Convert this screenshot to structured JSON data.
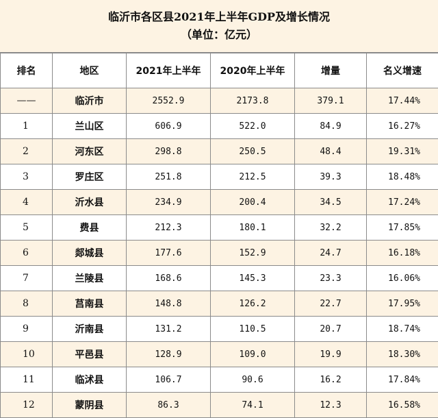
{
  "title": {
    "line1": "临沂市各区县2021年上半年GDP及增长情况",
    "line2": "（单位：亿元）"
  },
  "headers": [
    "排名",
    "地区",
    "2021年上半年",
    "2020年上半年",
    "增量",
    "名义增速"
  ],
  "rows": [
    {
      "rank": "——",
      "region": "临沂市",
      "gdp2021": "2552.9",
      "gdp2020": "2173.8",
      "increase": "379.1",
      "growth": "17.44%"
    },
    {
      "rank": "1",
      "region": "兰山区",
      "gdp2021": "606.9",
      "gdp2020": "522.0",
      "increase": "84.9",
      "growth": "16.27%"
    },
    {
      "rank": "2",
      "region": "河东区",
      "gdp2021": "298.8",
      "gdp2020": "250.5",
      "increase": "48.4",
      "growth": "19.31%"
    },
    {
      "rank": "3",
      "region": "罗庄区",
      "gdp2021": "251.8",
      "gdp2020": "212.5",
      "increase": "39.3",
      "growth": "18.48%"
    },
    {
      "rank": "4",
      "region": "沂水县",
      "gdp2021": "234.9",
      "gdp2020": "200.4",
      "increase": "34.5",
      "growth": "17.24%"
    },
    {
      "rank": "5",
      "region": "费县",
      "gdp2021": "212.3",
      "gdp2020": "180.1",
      "increase": "32.2",
      "growth": "17.85%"
    },
    {
      "rank": "6",
      "region": "郯城县",
      "gdp2021": "177.6",
      "gdp2020": "152.9",
      "increase": "24.7",
      "growth": "16.18%"
    },
    {
      "rank": "7",
      "region": "兰陵县",
      "gdp2021": "168.6",
      "gdp2020": "145.3",
      "increase": "23.3",
      "growth": "16.06%"
    },
    {
      "rank": "8",
      "region": "莒南县",
      "gdp2021": "148.8",
      "gdp2020": "126.2",
      "increase": "22.7",
      "growth": "17.95%"
    },
    {
      "rank": "9",
      "region": "沂南县",
      "gdp2021": "131.2",
      "gdp2020": "110.5",
      "increase": "20.7",
      "growth": "18.74%"
    },
    {
      "rank": "10",
      "region": "平邑县",
      "gdp2021": "128.9",
      "gdp2020": "109.0",
      "increase": "19.9",
      "growth": "18.30%"
    },
    {
      "rank": "11",
      "region": "临沭县",
      "gdp2021": "106.7",
      "gdp2020": "90.6",
      "increase": "16.2",
      "growth": "17.84%"
    },
    {
      "rank": "12",
      "region": "蒙阴县",
      "gdp2021": "86.3",
      "gdp2020": "74.1",
      "increase": "12.3",
      "growth": "16.58%"
    }
  ],
  "colors": {
    "row_highlight": "#fdf3e3",
    "border": "#8a8a8a"
  }
}
